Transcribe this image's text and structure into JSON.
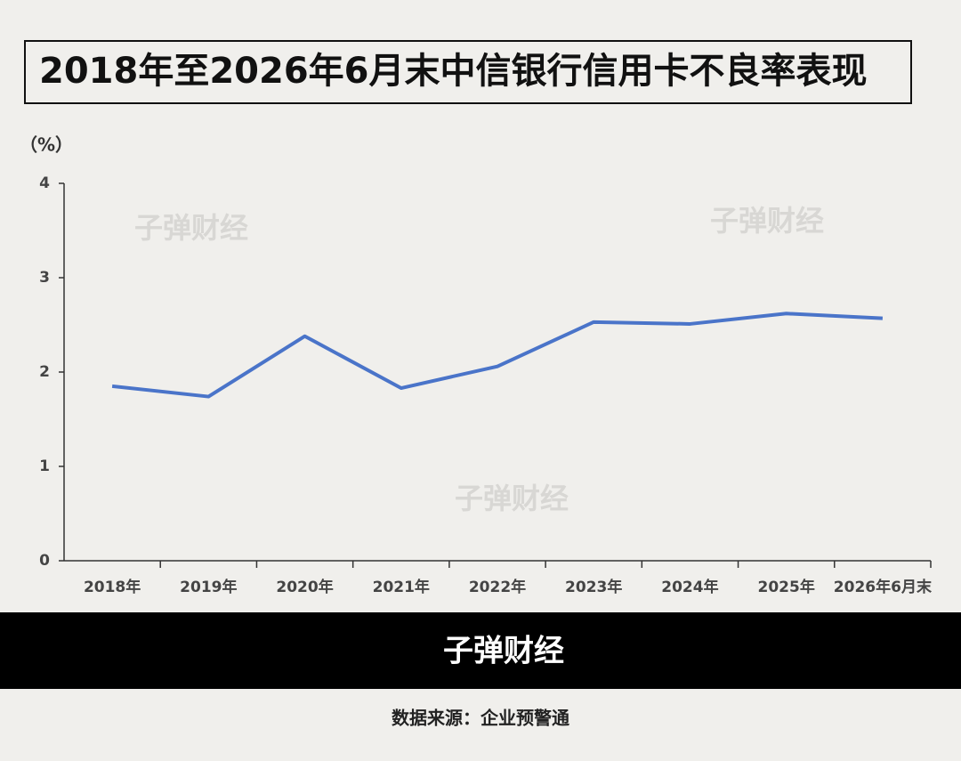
{
  "chart_data": {
    "type": "line",
    "title": "2018年至2026年6月末中信银行信用卡不良率表现",
    "y_label": "（%）",
    "categories": [
      "2018年",
      "2019年",
      "2020年",
      "2021年",
      "2022年",
      "2023年",
      "2024年",
      "2025年",
      "2026年6月末"
    ],
    "series": [
      {
        "name": "信用卡不良率",
        "color": "#4a74c9",
        "values": [
          1.85,
          1.74,
          2.38,
          1.83,
          2.06,
          2.53,
          2.51,
          2.62,
          2.57
        ]
      }
    ],
    "ylim": [
      0,
      4
    ],
    "yticks": [
      0,
      1,
      2,
      3,
      4
    ],
    "grid": false
  },
  "watermark": "子弹财经",
  "footer": {
    "brand": "子弹财经",
    "source": "数据来源：企业预警通"
  }
}
